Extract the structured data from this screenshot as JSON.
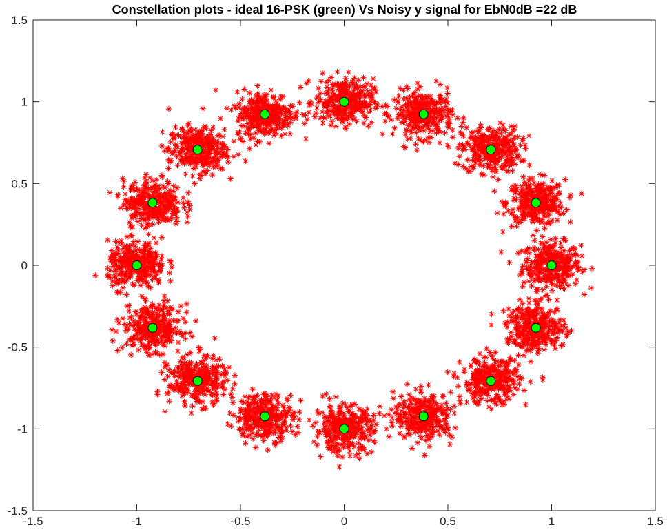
{
  "chart_data": {
    "type": "scatter",
    "title": "Constellation plots - ideal 16-PSK (green) Vs Noisy y signal for EbN0dB =22 dB",
    "xlabel": "",
    "ylabel": "",
    "xlim": [
      -1.5,
      1.5
    ],
    "ylim": [
      -1.5,
      1.5
    ],
    "xticks": [
      -1.5,
      -1,
      -0.5,
      0,
      0.5,
      1,
      1.5
    ],
    "xtick_labels": [
      "-1.5",
      "-1",
      "-0.5",
      "0",
      "0.5",
      "1",
      "1.5"
    ],
    "yticks": [
      -1.5,
      -1,
      -0.5,
      0,
      0.5,
      1,
      1.5
    ],
    "ytick_labels": [
      "-1.5",
      "-1",
      "-0.5",
      "0",
      "0.5",
      "1",
      "1.5"
    ],
    "grid": false,
    "box": true,
    "series": [
      {
        "marker": "asterisk",
        "color": "#ff0000",
        "cluster_spread": 0.07,
        "cluster_centers": [
          [
            1,
            0
          ],
          [
            0.9239,
            0.3827
          ],
          [
            0.7071,
            0.7071
          ],
          [
            0.3827,
            0.9239
          ],
          [
            0,
            1
          ],
          [
            -0.3827,
            0.9239
          ],
          [
            -0.7071,
            0.7071
          ],
          [
            -0.9239,
            0.3827
          ],
          [
            -1,
            0
          ],
          [
            -0.9239,
            -0.3827
          ],
          [
            -0.7071,
            -0.7071
          ],
          [
            -0.3827,
            -0.9239
          ],
          [
            0,
            -1
          ],
          [
            0.3827,
            -0.9239
          ],
          [
            0.7071,
            -0.7071
          ],
          [
            0.9239,
            -0.3827
          ]
        ]
      },
      {
        "marker": "circle",
        "color": "#00ff00",
        "edge_color": "#000000",
        "x": [
          1,
          0.9239,
          0.7071,
          0.3827,
          0,
          -0.3827,
          -0.7071,
          -0.9239,
          -1,
          -0.9239,
          -0.7071,
          -0.3827,
          0,
          0.3827,
          0.7071,
          0.9239
        ],
        "y": [
          0,
          0.3827,
          0.7071,
          0.9239,
          1,
          0.9239,
          0.7071,
          0.3827,
          0,
          -0.3827,
          -0.7071,
          -0.9239,
          -1,
          -0.9239,
          -0.7071,
          -0.3827
        ]
      }
    ]
  }
}
